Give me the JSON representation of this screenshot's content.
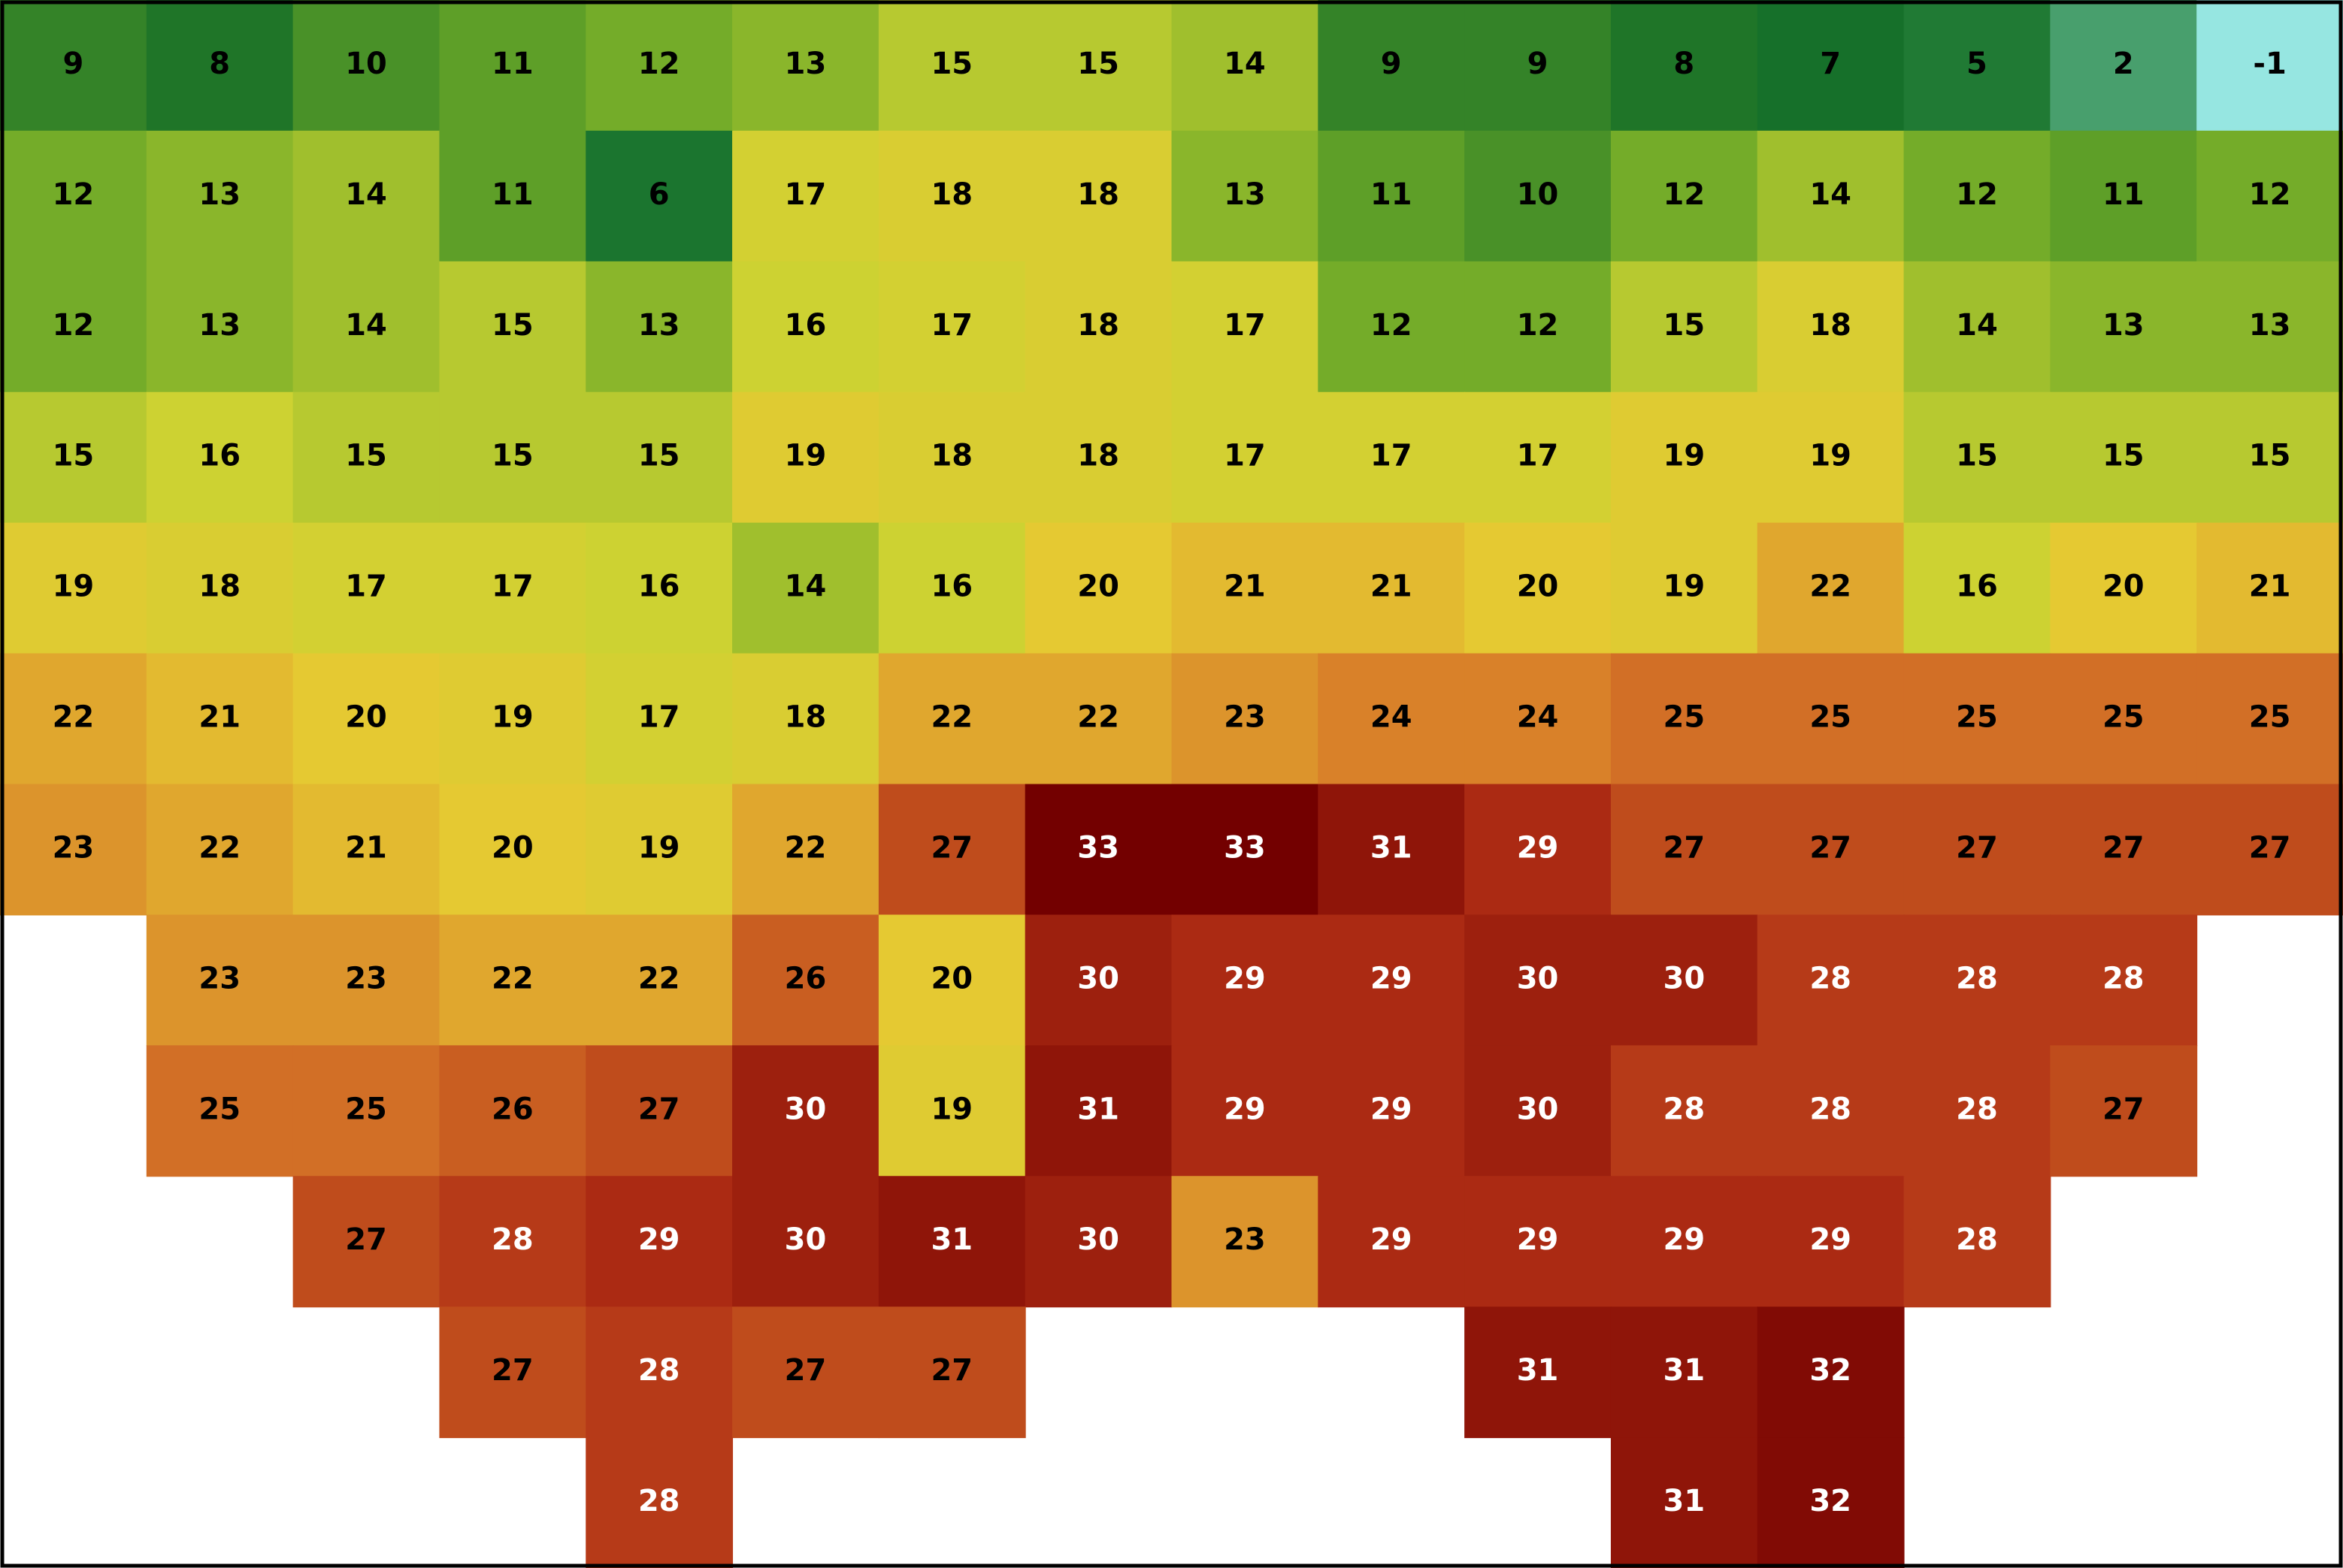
{
  "map": {
    "type": "gridded-temperature",
    "rows": [
      [
        9,
        8,
        10,
        11,
        12,
        13,
        15,
        15,
        14,
        9,
        9,
        8,
        7,
        5,
        2,
        -1
      ],
      [
        12,
        13,
        14,
        11,
        6,
        17,
        18,
        18,
        13,
        11,
        10,
        12,
        14,
        12,
        11,
        12
      ],
      [
        12,
        13,
        14,
        15,
        13,
        16,
        17,
        18,
        17,
        12,
        12,
        15,
        18,
        14,
        13,
        13
      ],
      [
        15,
        16,
        15,
        15,
        15,
        19,
        18,
        18,
        17,
        17,
        17,
        19,
        19,
        15,
        15,
        15
      ],
      [
        19,
        18,
        17,
        17,
        16,
        14,
        16,
        20,
        21,
        21,
        20,
        19,
        22,
        16,
        20,
        21
      ],
      [
        22,
        21,
        20,
        19,
        17,
        18,
        22,
        22,
        23,
        24,
        24,
        25,
        25,
        25,
        25,
        25
      ],
      [
        23,
        22,
        21,
        20,
        19,
        22,
        27,
        33,
        33,
        31,
        29,
        27,
        27,
        27,
        27,
        27
      ],
      [
        null,
        23,
        23,
        22,
        22,
        26,
        20,
        30,
        29,
        29,
        30,
        30,
        28,
        28,
        28,
        null
      ],
      [
        null,
        25,
        25,
        26,
        27,
        30,
        19,
        31,
        29,
        29,
        30,
        28,
        28,
        28,
        27,
        null
      ],
      [
        null,
        null,
        27,
        28,
        29,
        30,
        31,
        30,
        23,
        29,
        29,
        29,
        29,
        28,
        null,
        null
      ],
      [
        null,
        null,
        null,
        27,
        28,
        27,
        27,
        null,
        null,
        null,
        31,
        31,
        32,
        null,
        null,
        null
      ],
      [
        null,
        null,
        null,
        null,
        28,
        null,
        null,
        null,
        null,
        null,
        null,
        31,
        32,
        null,
        null,
        null
      ]
    ]
  }
}
